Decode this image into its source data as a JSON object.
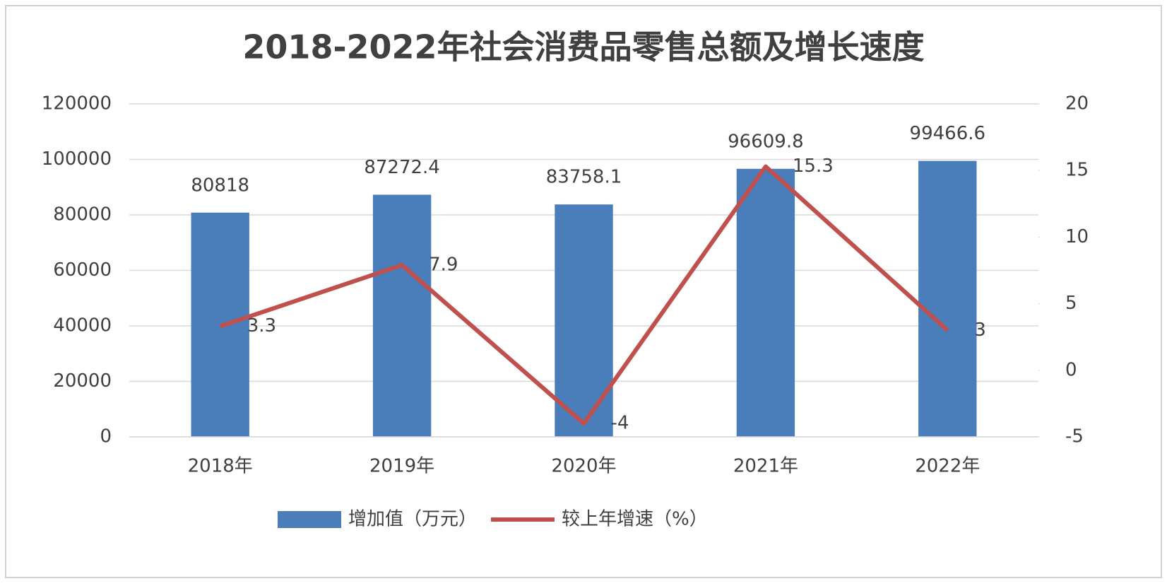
{
  "chart_data": {
    "type": "bar",
    "title": "2018-2022年社会消费品零售总额及增长速度",
    "categories": [
      "2018年",
      "2019年",
      "2020年",
      "2021年",
      "2022年"
    ],
    "series": [
      {
        "name": "增加值（万元）",
        "type": "bar",
        "color": "#4a7ebb",
        "values": [
          80818,
          87272.4,
          83758.1,
          96609.8,
          99466.6
        ]
      },
      {
        "name": "较上年增速（%）",
        "type": "line",
        "axis": "y2",
        "color": "#c0504d",
        "values": [
          3.3,
          7.9,
          -4,
          15.3,
          3
        ]
      }
    ],
    "ylim": [
      0,
      120000
    ],
    "yticks": [
      0,
      20000,
      40000,
      60000,
      80000,
      100000,
      120000
    ],
    "y2lim": [
      -5,
      20
    ],
    "y2ticks": [
      -5,
      0,
      5,
      10,
      15,
      20
    ],
    "grid": true,
    "legend": "bottom"
  }
}
